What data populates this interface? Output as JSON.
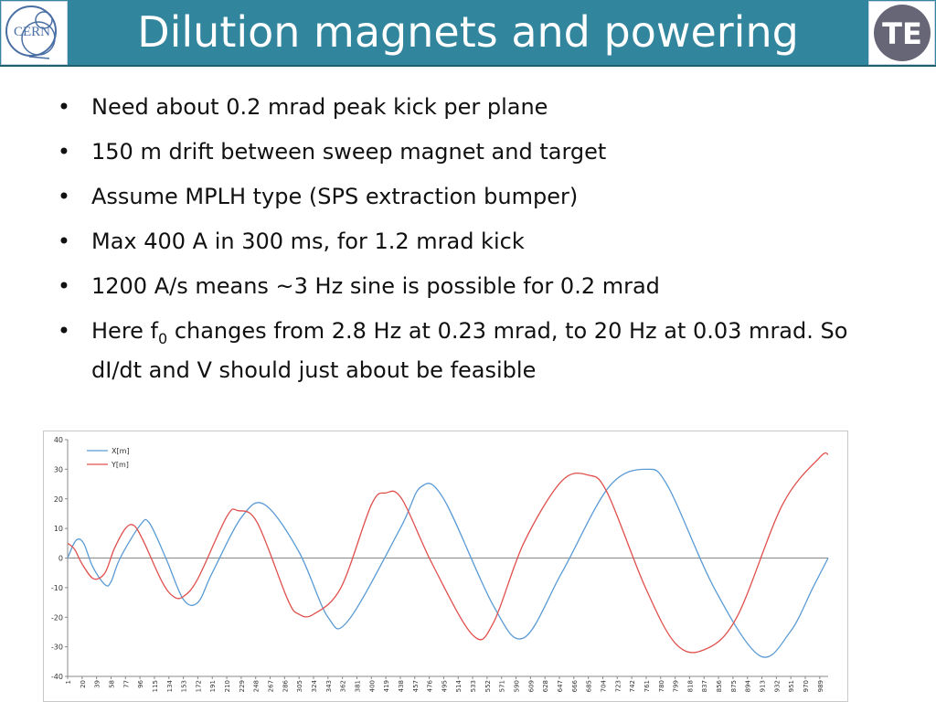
{
  "header": {
    "title": "Dilution magnets and powering",
    "left_logo": {
      "icon": "cern-logo-icon",
      "text": "CERN"
    },
    "right_logo": {
      "icon": "te-logo-icon",
      "text": "TE"
    }
  },
  "bullets": [
    {
      "text": "Need about 0.2 mrad peak kick per plane"
    },
    {
      "text": "150 m drift between sweep magnet and target"
    },
    {
      "text": "Assume MPLH type (SPS extraction bumper)"
    },
    {
      "text": "Max 400 A in 300 ms, for 1.2 mrad kick"
    },
    {
      "text": "1200 A/s means ~3 Hz sine is possible for 0.2 mrad"
    },
    {
      "text_pre": "Here f",
      "subscript": "0",
      "text_post": " changes from 2.8 Hz at 0.23 mrad, to 20 Hz at 0.03 mrad. So dI/dt and V should just about be feasible"
    }
  ],
  "colors": {
    "title_bar": "#31859c",
    "series_x": "#5b9bd5",
    "series_y": "#e0504d",
    "bullet_text": "#111111"
  },
  "chart_data": {
    "type": "line",
    "title": "",
    "xlabel": "",
    "ylabel": "",
    "ylim": [
      -40,
      40
    ],
    "xlim": [
      1,
      1000
    ],
    "yticks": [
      40,
      30,
      20,
      10,
      0,
      -10,
      -20,
      -30,
      -40
    ],
    "xticks": [
      "1",
      "20",
      "39",
      "58",
      "77",
      "96",
      "115",
      "134",
      "153",
      "172",
      "191",
      "210",
      "229",
      "248",
      "267",
      "286",
      "305",
      "324",
      "343",
      "362",
      "381",
      "400",
      "419",
      "438",
      "457",
      "476",
      "495",
      "514",
      "533",
      "552",
      "571",
      "590",
      "609",
      "628",
      "647",
      "666",
      "685",
      "704",
      "723",
      "742",
      "761",
      "780",
      "799",
      "818",
      "837",
      "856",
      "875",
      "894",
      "913",
      "932",
      "951",
      "970",
      "989"
    ],
    "grid": false,
    "legend_position": "top-left",
    "series": [
      {
        "name": "X[m]",
        "color": "#5b9bd5",
        "x": [
          1,
          12,
          22,
          34,
          50,
          58,
          70,
          96,
          108,
          130,
          153,
          172,
          191,
          230,
          260,
          305,
          343,
          370,
          438,
          465,
          495,
          560,
          600,
          650,
          712,
          761,
          790,
          850,
          910,
          950,
          980,
          1000
        ],
        "y": [
          0,
          6,
          5,
          -3,
          -9,
          -8,
          0,
          11,
          12,
          0,
          -14,
          -15,
          -5,
          14,
          18,
          2,
          -20,
          -21,
          10,
          24,
          20,
          -16,
          -27,
          -5,
          24,
          30,
          24,
          -10,
          -33,
          -25,
          -10,
          0
        ]
      },
      {
        "name": "Y[m]",
        "color": "#e0504d",
        "x": [
          1,
          10,
          20,
          35,
          50,
          62,
          77,
          88,
          100,
          125,
          140,
          153,
          172,
          210,
          225,
          250,
          290,
          305,
          324,
          360,
          400,
          419,
          440,
          480,
          533,
          560,
          600,
          650,
          685,
          710,
          760,
          800,
          837,
          880,
          940,
          989,
          1000
        ],
        "y": [
          5,
          3,
          -2,
          -7,
          -5,
          3,
          10,
          11,
          6,
          -8,
          -13,
          -13,
          -7,
          14,
          16,
          12,
          -14,
          -19,
          -19,
          -10,
          18,
          22,
          20,
          -2,
          -26,
          -22,
          5,
          26,
          28,
          22,
          -10,
          -29,
          -31,
          -20,
          18,
          34,
          35
        ]
      }
    ]
  }
}
